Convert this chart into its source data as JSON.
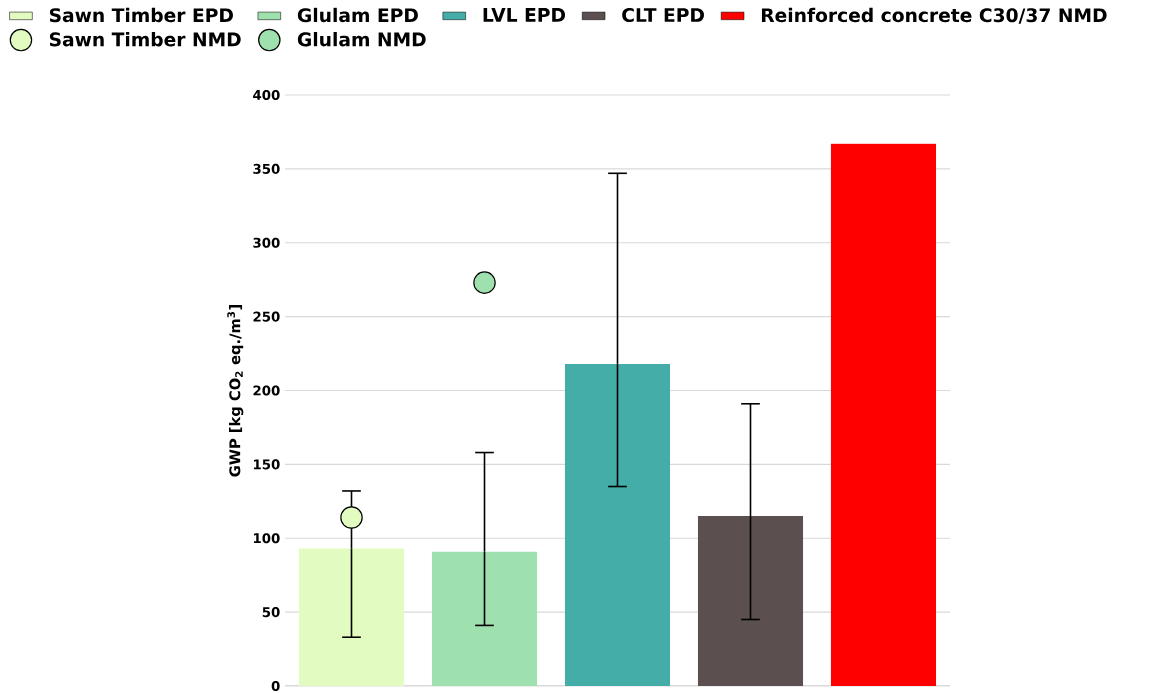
{
  "chart_data": {
    "type": "bar",
    "categories": [
      null,
      null,
      null,
      null,
      null
    ],
    "ylabel": "GWP [kg CO$_{2}$ eq./m$^{3}$]",
    "ylim": [
      0,
      400
    ],
    "yticks": [
      0,
      50,
      100,
      150,
      200,
      250,
      300,
      350,
      400
    ],
    "grid": "y",
    "legend": "top left",
    "series": [
      {
        "name": "Sawn Timber EPD",
        "color": "#e2fbc0",
        "values": [
          93,
          null,
          null,
          null,
          null
        ],
        "errors": [
          [
            33,
            132
          ],
          null,
          null,
          null,
          null
        ]
      },
      {
        "name": "Glulam EPD",
        "color": "#9fe0af",
        "values": [
          null,
          91,
          null,
          null,
          null
        ],
        "errors": [
          null,
          [
            41,
            158
          ],
          null,
          null,
          null
        ]
      },
      {
        "name": "LVL EPD",
        "color": "#45ada8",
        "values": [
          null,
          null,
          218,
          null,
          null
        ],
        "errors": [
          null,
          null,
          [
            135,
            347
          ],
          null,
          null
        ]
      },
      {
        "name": "CLT EPD",
        "color": "#5b4f4f",
        "values": [
          null,
          null,
          null,
          115,
          null
        ],
        "errors": [
          null,
          null,
          null,
          [
            45,
            191
          ],
          null
        ]
      },
      {
        "name": "Reinforced concrete C30/37 NMD",
        "color": "#ff0000",
        "values": [
          null,
          null,
          null,
          null,
          367
        ]
      },
      {
        "name": "Sawn Timber NMD",
        "type": "scatter",
        "marker": "circle",
        "color": "#e2fbc0",
        "values": [
          114,
          null,
          null,
          null,
          null
        ]
      },
      {
        "name": "Glulam NMD",
        "type": "scatter",
        "marker": "circle",
        "color": "#9fe0af",
        "values": [
          null,
          273,
          null,
          null,
          null
        ]
      }
    ]
  }
}
